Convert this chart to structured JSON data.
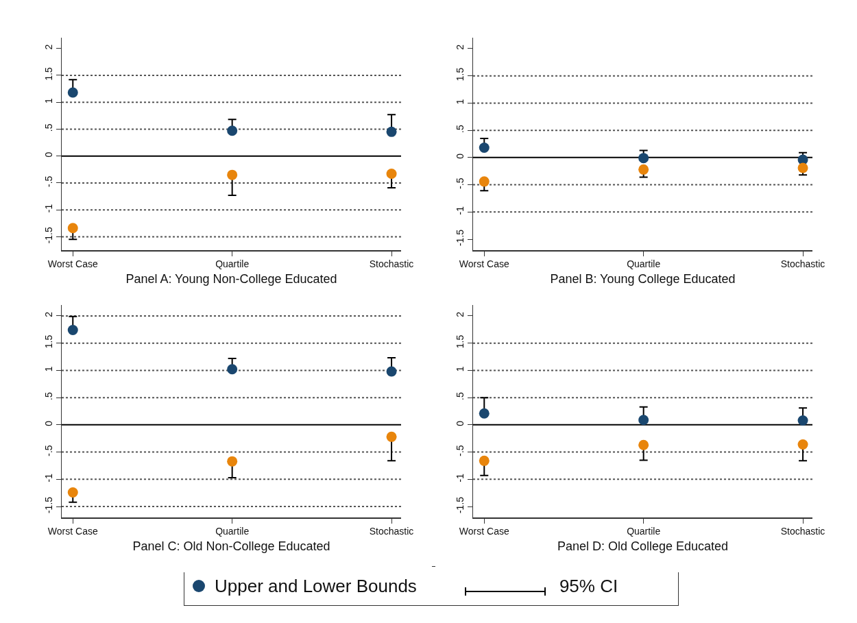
{
  "chart_data": [
    {
      "type": "scatter",
      "title": "Panel A: Young Non-College Educated",
      "categories": [
        "Worst Case",
        "Quartile",
        "Stochastic"
      ],
      "marker": "circle",
      "legend": "bottom",
      "annotations": [
        "95% CI"
      ],
      "ylim": [
        -1.75,
        2.2
      ],
      "yticks": [
        {
          "value": -1.5,
          "label": "-1.5"
        },
        {
          "value": -1,
          "label": "-1"
        },
        {
          "value": -0.5,
          "label": "-.5"
        },
        0,
        {
          "value": 0.5,
          "label": ".5"
        },
        1,
        1.5,
        2
      ],
      "ref_lines": [
        {
          "axis": "y",
          "value": 1.5,
          "line_style": "dotted",
          "color": "#555555"
        },
        {
          "axis": "y",
          "value": 1,
          "line_style": "dotted",
          "color": "#555555"
        },
        {
          "axis": "y",
          "value": 0.5,
          "line_style": "dotted",
          "color": "#555555"
        },
        {
          "axis": "y",
          "value": -0.5,
          "line_style": "dotted",
          "color": "#555555"
        },
        {
          "axis": "y",
          "value": -1,
          "line_style": "dotted",
          "color": "#555555"
        },
        {
          "axis": "y",
          "value": -1.5,
          "line_style": "dotted",
          "color": "#555555"
        },
        {
          "axis": "y",
          "value": 0,
          "line_style": "solid",
          "color": "#000000"
        }
      ],
      "series": [
        {
          "name": "Upper and Lower Bounds",
          "color": "#1a476f",
          "values": [
            1.18,
            0.47,
            0.45
          ],
          "errors": [
            [
              1.18,
              1.42
            ],
            [
              0.47,
              0.68
            ],
            [
              0.45,
              0.77
            ]
          ]
        },
        {
          "color": "#e8850c",
          "values": [
            -1.34,
            -0.35,
            -0.33
          ],
          "errors": [
            [
              -1.55,
              -1.34
            ],
            [
              -0.73,
              -0.35
            ],
            [
              -0.59,
              -0.33
            ]
          ]
        }
      ]
    },
    {
      "type": "scatter",
      "title": "Panel B: Young College Educated",
      "categories": [
        "Worst Case",
        "Quartile",
        "Stochastic"
      ],
      "marker": "circle",
      "ylim": [
        -1.7,
        2.2
      ],
      "yticks": [
        {
          "value": -1.5,
          "label": "-1.5"
        },
        {
          "value": -1,
          "label": "-1"
        },
        {
          "value": -0.5,
          "label": "-.5"
        },
        0,
        {
          "value": 0.5,
          "label": ".5"
        },
        1,
        1.5,
        2
      ],
      "ref_lines": [
        {
          "axis": "y",
          "value": 1.5,
          "line_style": "dotted",
          "color": "#555555"
        },
        {
          "axis": "y",
          "value": 1,
          "line_style": "dotted",
          "color": "#555555"
        },
        {
          "axis": "y",
          "value": 0.5,
          "line_style": "dotted",
          "color": "#555555"
        },
        {
          "axis": "y",
          "value": -0.5,
          "line_style": "dotted",
          "color": "#555555"
        },
        {
          "axis": "y",
          "value": -1,
          "line_style": "dotted",
          "color": "#555555"
        },
        {
          "axis": "y",
          "value": 0,
          "line_style": "solid",
          "color": "#000000"
        }
      ],
      "series": [
        {
          "color": "#1a476f",
          "values": [
            0.18,
            -0.01,
            -0.04
          ],
          "errors": [
            [
              0.18,
              0.35
            ],
            [
              -0.01,
              0.13
            ],
            [
              -0.04,
              0.09
            ]
          ]
        },
        {
          "color": "#e8850c",
          "values": [
            -0.44,
            -0.22,
            -0.19
          ],
          "errors": [
            [
              -0.61,
              -0.44
            ],
            [
              -0.36,
              -0.22
            ],
            [
              -0.32,
              -0.19
            ]
          ]
        }
      ]
    },
    {
      "type": "scatter",
      "title": "Panel C: Old Non-College Educated",
      "categories": [
        "Worst Case",
        "Quartile",
        "Stochastic"
      ],
      "marker": "circle",
      "ylim": [
        -1.7,
        2.2
      ],
      "yticks": [
        {
          "value": -1.5,
          "label": "-1.5"
        },
        {
          "value": -1,
          "label": "-1"
        },
        {
          "value": -0.5,
          "label": "-.5"
        },
        0,
        {
          "value": 0.5,
          "label": ".5"
        },
        1,
        1.5,
        2
      ],
      "ref_lines": [
        {
          "axis": "y",
          "value": 2,
          "line_style": "dotted",
          "color": "#555555"
        },
        {
          "axis": "y",
          "value": 1.5,
          "line_style": "dotted",
          "color": "#555555"
        },
        {
          "axis": "y",
          "value": 1,
          "line_style": "dotted",
          "color": "#555555"
        },
        {
          "axis": "y",
          "value": 0.5,
          "line_style": "dotted",
          "color": "#555555"
        },
        {
          "axis": "y",
          "value": -0.5,
          "line_style": "dotted",
          "color": "#555555"
        },
        {
          "axis": "y",
          "value": -1,
          "line_style": "dotted",
          "color": "#555555"
        },
        {
          "axis": "y",
          "value": -1.5,
          "line_style": "dotted",
          "color": "#555555"
        },
        {
          "axis": "y",
          "value": 0,
          "line_style": "solid",
          "color": "#000000"
        }
      ],
      "series": [
        {
          "color": "#1a476f",
          "values": [
            1.74,
            1.02,
            0.98
          ],
          "errors": [
            [
              1.74,
              1.99
            ],
            [
              1.02,
              1.22
            ],
            [
              0.98,
              1.23
            ]
          ]
        },
        {
          "color": "#e8850c",
          "values": [
            -1.24,
            -0.67,
            -0.22
          ],
          "errors": [
            [
              -1.42,
              -1.24
            ],
            [
              -0.97,
              -0.67
            ],
            [
              -0.66,
              -0.22
            ]
          ]
        }
      ]
    },
    {
      "type": "scatter",
      "title": "Panel D: Old College Educated",
      "categories": [
        "Worst Case",
        "Quartile",
        "Stochastic"
      ],
      "marker": "circle",
      "ylim": [
        -1.7,
        2.2
      ],
      "yticks": [
        {
          "value": -1.5,
          "label": "-1.5"
        },
        {
          "value": -1,
          "label": "-1"
        },
        {
          "value": -0.5,
          "label": "-.5"
        },
        0,
        {
          "value": 0.5,
          "label": ".5"
        },
        1,
        1.5,
        2
      ],
      "ref_lines": [
        {
          "axis": "y",
          "value": 1.5,
          "line_style": "dotted",
          "color": "#555555"
        },
        {
          "axis": "y",
          "value": 1,
          "line_style": "dotted",
          "color": "#555555"
        },
        {
          "axis": "y",
          "value": 0.5,
          "line_style": "dotted",
          "color": "#555555"
        },
        {
          "axis": "y",
          "value": -0.5,
          "line_style": "dotted",
          "color": "#555555"
        },
        {
          "axis": "y",
          "value": -1,
          "line_style": "dotted",
          "color": "#555555"
        },
        {
          "axis": "y",
          "value": 0,
          "line_style": "solid",
          "color": "#000000"
        }
      ],
      "series": [
        {
          "color": "#1a476f",
          "values": [
            0.21,
            0.09,
            0.08
          ],
          "errors": [
            [
              0.21,
              0.5
            ],
            [
              0.09,
              0.33
            ],
            [
              0.08,
              0.31
            ]
          ]
        },
        {
          "color": "#e8850c",
          "values": [
            -0.66,
            -0.37,
            -0.36
          ],
          "errors": [
            [
              -0.93,
              -0.66
            ],
            [
              -0.65,
              -0.37
            ],
            [
              -0.66,
              -0.36
            ]
          ]
        }
      ]
    }
  ]
}
